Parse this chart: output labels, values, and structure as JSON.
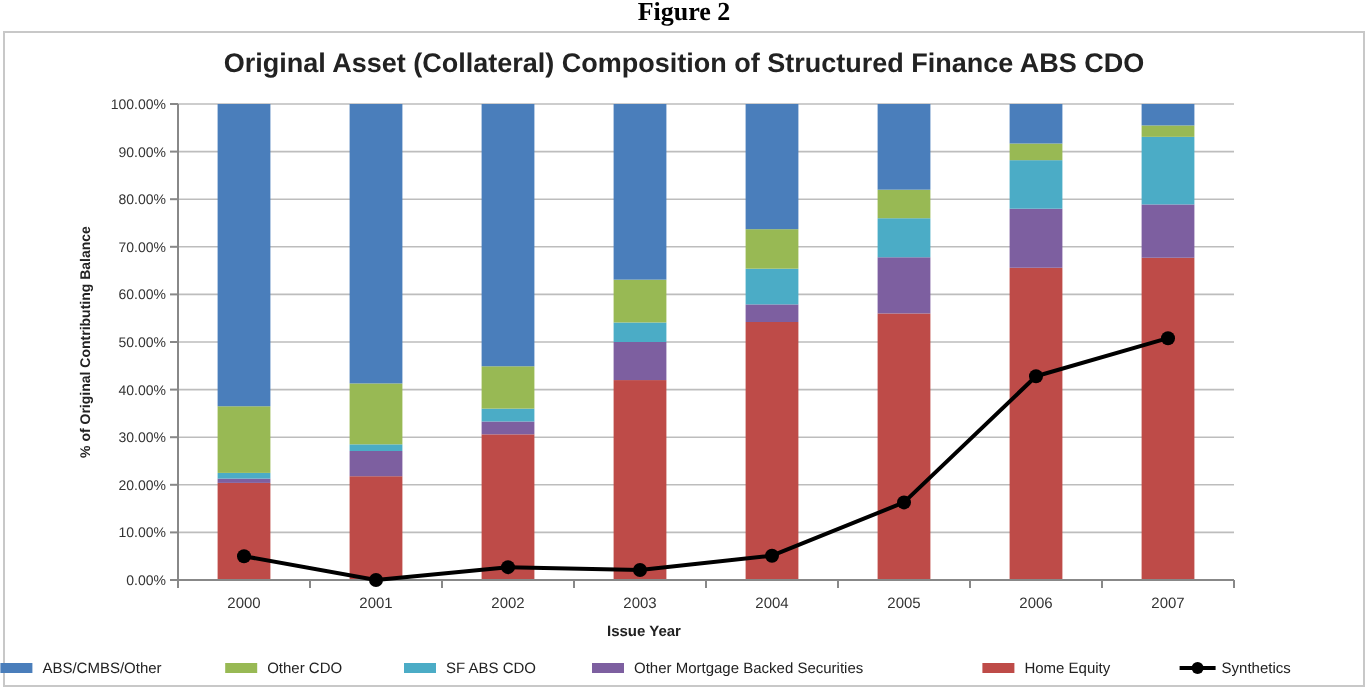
{
  "chart_data": {
    "type": "bar",
    "title": "Original Asset (Collateral) Composition of Structured Finance ABS CDO",
    "annotations": [
      "Figure 2"
    ],
    "xlabel": "Issue Year",
    "ylabel": "% of Original Contributing Balance",
    "categories": [
      "2000",
      "2001",
      "2002",
      "2003",
      "2004",
      "2005",
      "2006",
      "2007"
    ],
    "stacked": true,
    "series": [
      {
        "name": "Home Equity",
        "color": "#be4b48",
        "values": [
          20.4,
          21.8,
          30.6,
          42.0,
          54.2,
          56.0,
          65.6,
          67.7
        ]
      },
      {
        "name": "Other Mortgage Backed Securities",
        "color": "#7d5fa0",
        "values": [
          0.9,
          5.3,
          2.7,
          8.0,
          3.7,
          11.8,
          12.4,
          11.2
        ]
      },
      {
        "name": "SF ABS CDO",
        "color": "#4bacc6",
        "values": [
          1.2,
          1.4,
          2.7,
          4.1,
          7.5,
          8.2,
          10.2,
          14.2
        ]
      },
      {
        "name": "Other CDO",
        "color": "#98b954",
        "values": [
          14.0,
          12.8,
          8.9,
          9.0,
          8.3,
          6.0,
          3.5,
          2.4
        ]
      },
      {
        "name": "ABS/CMBS/Other",
        "color": "#4a7ebb",
        "values": [
          63.5,
          58.7,
          55.1,
          36.9,
          26.3,
          18.0,
          8.3,
          4.5
        ]
      },
      {
        "name": "Synthetics",
        "type": "line",
        "color": "#000000",
        "values": [
          5.0,
          0.0,
          2.7,
          2.1,
          5.1,
          16.3,
          42.8,
          50.8
        ]
      }
    ],
    "ylim": [
      0,
      100
    ],
    "yticks": [
      {
        "value": 0,
        "label": "0.00%"
      },
      {
        "value": 10,
        "label": "10.00%"
      },
      {
        "value": 20,
        "label": "20.00%"
      },
      {
        "value": 30,
        "label": "30.00%"
      },
      {
        "value": 40,
        "label": "40.00%"
      },
      {
        "value": 50,
        "label": "50.00%"
      },
      {
        "value": 60,
        "label": "60.00%"
      },
      {
        "value": 70,
        "label": "70.00%"
      },
      {
        "value": 80,
        "label": "80.00%"
      },
      {
        "value": 90,
        "label": "90.00%"
      },
      {
        "value": 100,
        "label": "100.00%"
      }
    ],
    "grid": "y",
    "legend": "bottom",
    "marker": "circle",
    "line_style": "solid"
  }
}
